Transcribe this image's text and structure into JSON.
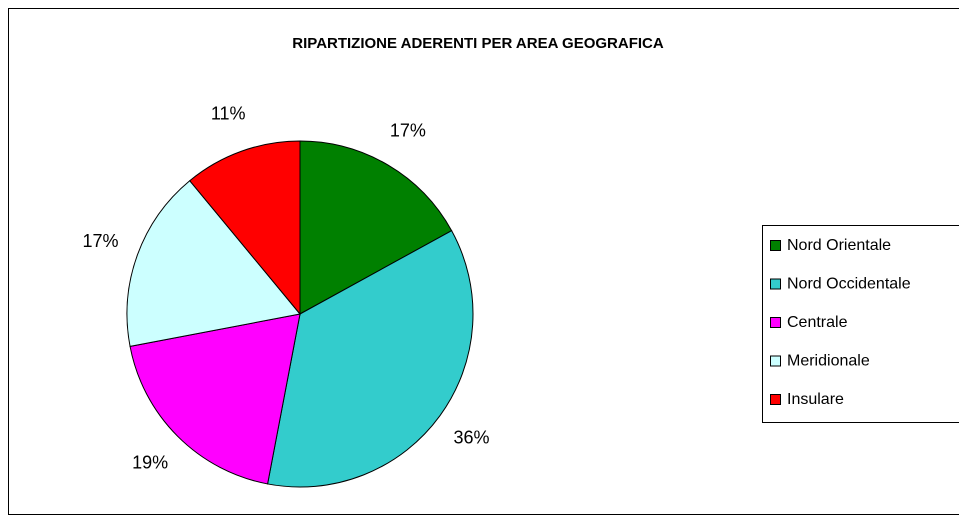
{
  "chart_data": {
    "type": "pie",
    "title": "RIPARTIZIONE ADERENTI PER AREA GEOGRAFICA",
    "categories": [
      "Nord Orientale",
      "Nord Occidentale",
      "Centrale",
      "Meridionale",
      "Insulare"
    ],
    "values": [
      17,
      36,
      19,
      17,
      11
    ],
    "value_labels": [
      "17%",
      "36%",
      "19%",
      "17%",
      "11%"
    ],
    "colors": [
      "#008000",
      "#33cccc",
      "#ff00ff",
      "#ccffff",
      "#ff0000"
    ],
    "legend": "right"
  }
}
